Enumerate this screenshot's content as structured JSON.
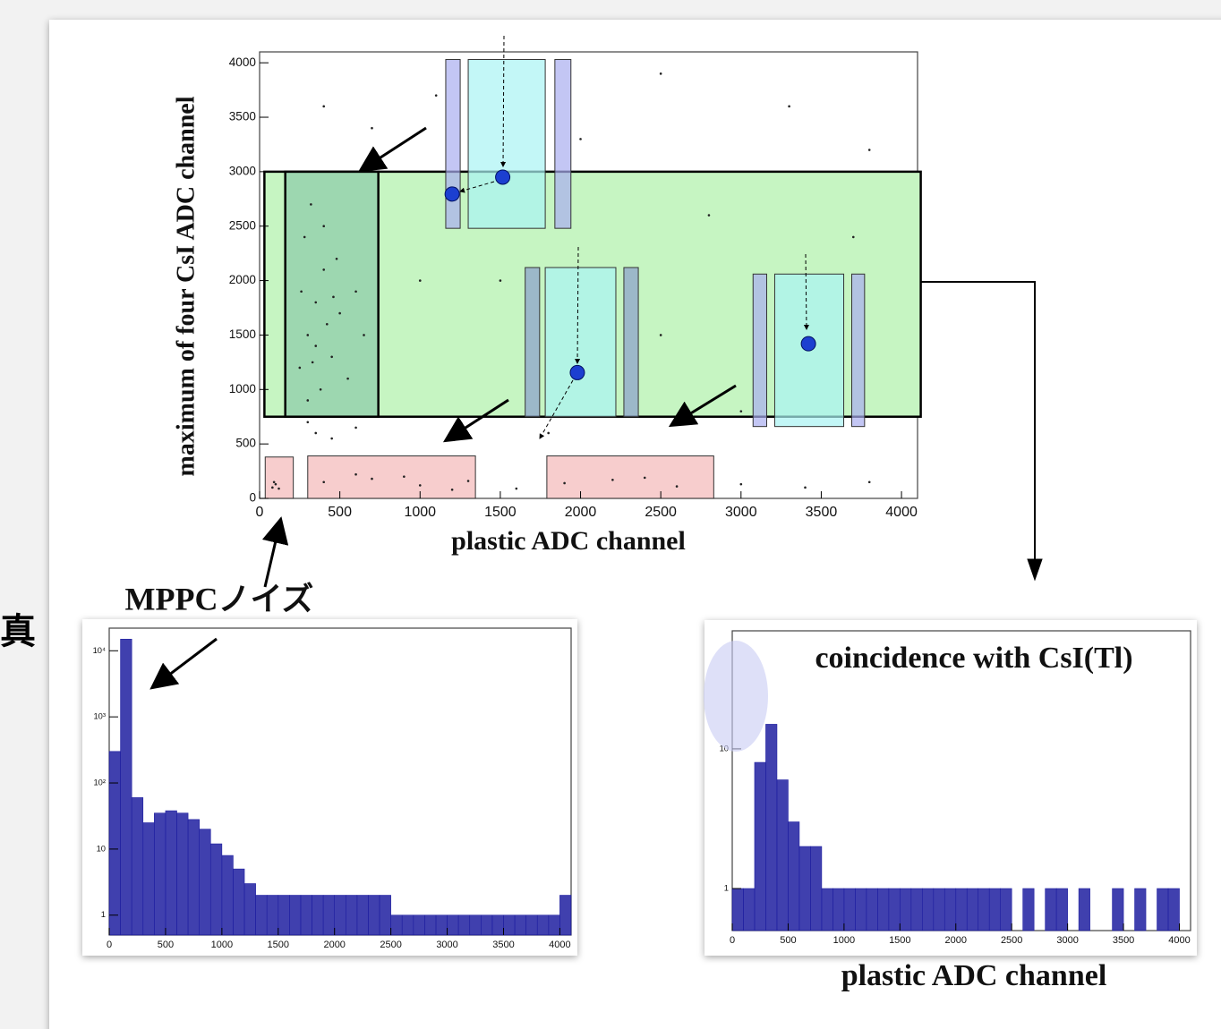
{
  "edge_text": "真",
  "chart_data": [
    {
      "type": "scatter",
      "xlabel": "plastic ADC channel",
      "ylabel": "maximum of four CsI ADC channel",
      "xlim": [
        0,
        4100
      ],
      "ylim": [
        0,
        4100
      ],
      "xticks": [
        0,
        500,
        1000,
        1500,
        2000,
        2500,
        3000,
        3500,
        4000
      ],
      "yticks": [
        0,
        500,
        1000,
        1500,
        2000,
        2500,
        3000,
        3500,
        4000
      ],
      "color": "#222222",
      "points": {
        "x": [
          250,
          300,
          350,
          400,
          280,
          450,
          500,
          380,
          320,
          600,
          420,
          350,
          480,
          260,
          550,
          400,
          330,
          460,
          300,
          650,
          400,
          700,
          1000,
          1300,
          1600,
          1900,
          2200,
          2600,
          3000,
          3400,
          3800,
          900,
          1200,
          2400,
          600,
          80,
          100,
          120,
          90,
          350,
          450,
          600,
          300,
          1100,
          2500,
          3300,
          700,
          2000,
          3800,
          1500,
          2500,
          2800,
          1000,
          3000,
          1800,
          3700,
          400
        ],
        "y": [
          1200,
          1500,
          1800,
          2100,
          2400,
          1300,
          1700,
          1000,
          2700,
          1900,
          1600,
          1400,
          2200,
          1900,
          1100,
          2500,
          1250,
          1850,
          900,
          1500,
          150,
          180,
          120,
          160,
          90,
          140,
          170,
          110,
          130,
          100,
          150,
          200,
          80,
          190,
          220,
          100,
          130,
          90,
          150,
          600,
          550,
          650,
          700,
          3700,
          3900,
          3600,
          3400,
          3300,
          3200,
          2000,
          1500,
          2600,
          2000,
          800,
          600,
          2400,
          3600
        ]
      },
      "regions": [
        {
          "x": [
            30,
            4120
          ],
          "y": [
            750,
            3000
          ],
          "color": "#c6f5c2"
        },
        {
          "x": [
            160,
            740
          ],
          "y": [
            750,
            3000
          ],
          "color": "#8ccaa8"
        },
        {
          "x": [
            1160,
            1250
          ],
          "y": [
            2480,
            4030
          ],
          "color": "#a9aef0"
        },
        {
          "x": [
            1840,
            1940
          ],
          "y": [
            2480,
            4030
          ],
          "color": "#a9aef0"
        },
        {
          "x": [
            1300,
            1780
          ],
          "y": [
            2480,
            4030
          ],
          "color": "#aaf4f4"
        },
        {
          "x": [
            1655,
            1745
          ],
          "y": [
            750,
            2120
          ],
          "color": "#8a9ecc"
        },
        {
          "x": [
            2270,
            2360
          ],
          "y": [
            750,
            2120
          ],
          "color": "#8a9ecc"
        },
        {
          "x": [
            1780,
            2220
          ],
          "y": [
            750,
            2120
          ],
          "color": "#aaf4f4"
        },
        {
          "x": [
            3075,
            3160
          ],
          "y": [
            660,
            2060
          ],
          "color": "#a9aef0"
        },
        {
          "x": [
            3690,
            3770
          ],
          "y": [
            660,
            2060
          ],
          "color": "#a9aef0"
        },
        {
          "x": [
            3210,
            3640
          ],
          "y": [
            660,
            2060
          ],
          "color": "#aaf4f4"
        },
        {
          "x": [
            35,
            210
          ],
          "y": [
            0,
            380
          ],
          "color": "#f4b8b8"
        },
        {
          "x": [
            300,
            1345
          ],
          "y": [
            0,
            390
          ],
          "color": "#f4b8b8"
        },
        {
          "x": [
            1790,
            2830
          ],
          "y": [
            0,
            390
          ],
          "color": "#f4b8b8"
        }
      ],
      "markers": {
        "x": [
          1200,
          1515,
          1980,
          3420
        ],
        "y": [
          2795,
          2950,
          1155,
          1420
        ],
        "color": "#1c3fd0"
      }
    },
    {
      "type": "histogram",
      "title": "MPPCノイズ",
      "log_y": true,
      "color": "#1f1fa0",
      "xlim": [
        0,
        4100
      ],
      "ylim": [
        0.5,
        22000
      ],
      "xticks": [
        0,
        500,
        1000,
        1500,
        2000,
        2500,
        3000,
        3500,
        4000
      ],
      "yticks": [
        1,
        10,
        {
          "value": 100,
          "label": "10²"
        },
        {
          "value": 1000,
          "label": "10³"
        },
        {
          "value": 10000,
          "label": "10⁴"
        }
      ],
      "bins": [
        0,
        100,
        200,
        300,
        400,
        500,
        600,
        700,
        800,
        900,
        1000,
        1100,
        1200,
        1300,
        1400,
        1500,
        1600,
        1700,
        1800,
        1900,
        2000,
        2100,
        2200,
        2300,
        2400,
        2500,
        2600,
        2700,
        2800,
        2900,
        3000,
        3100,
        3200,
        3300,
        3400,
        3500,
        3600,
        3700,
        3800,
        3900,
        4000,
        4100
      ],
      "counts": [
        300,
        15000,
        60,
        25,
        35,
        38,
        35,
        28,
        20,
        12,
        8,
        5,
        3,
        2,
        2,
        2,
        2,
        2,
        2,
        2,
        2,
        2,
        2,
        2,
        2,
        1,
        1,
        1,
        1,
        1,
        1,
        1,
        1,
        1,
        1,
        1,
        1,
        1,
        1,
        1,
        2
      ]
    },
    {
      "type": "histogram",
      "title": "coincidence with CsI(Tl)",
      "xlabel": "plastic ADC channel",
      "log_y": true,
      "color": "#1f1fa0",
      "xlim": [
        0,
        4100
      ],
      "ylim": [
        0.5,
        70
      ],
      "xticks": [
        0,
        500,
        1000,
        1500,
        2000,
        2500,
        3000,
        3500,
        4000
      ],
      "yticks": [
        1,
        10
      ],
      "bins": [
        0,
        100,
        200,
        300,
        400,
        500,
        600,
        700,
        800,
        900,
        1000,
        1100,
        1200,
        1300,
        1400,
        1500,
        1600,
        1700,
        1800,
        1900,
        2000,
        2100,
        2200,
        2300,
        2400,
        2500,
        2600,
        2700,
        2800,
        2900,
        3000,
        3100,
        3200,
        3300,
        3400,
        3500,
        3600,
        3700,
        3800,
        3900,
        4000,
        4100
      ],
      "counts": [
        1,
        1,
        8,
        15,
        6,
        3,
        2,
        2,
        1,
        1,
        1,
        1,
        1,
        1,
        1,
        1,
        1,
        1,
        1,
        1,
        1,
        1,
        1,
        1,
        1,
        0,
        1,
        0,
        1,
        1,
        0,
        1,
        0,
        0,
        1,
        0,
        1,
        0,
        1,
        1,
        0
      ]
    }
  ]
}
